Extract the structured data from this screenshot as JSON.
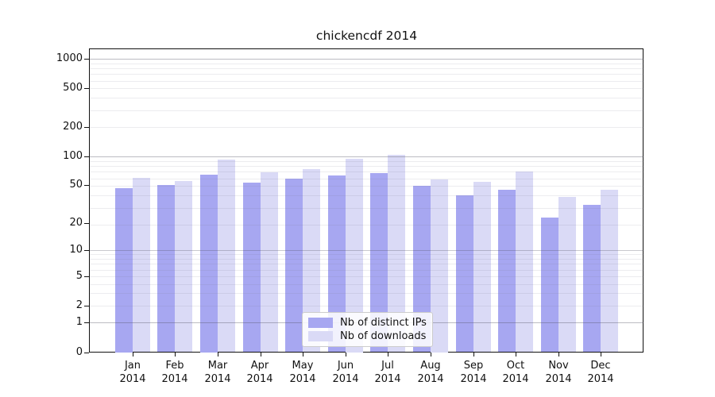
{
  "chart_data": {
    "type": "bar",
    "title": "chickencdf 2014",
    "x_categories": [
      "Jan 2014",
      "Feb 2014",
      "Mar 2014",
      "Apr 2014",
      "May 2014",
      "Jun 2014",
      "Jul 2014",
      "Aug 2014",
      "Sep 2014",
      "Oct 2014",
      "Nov 2014",
      "Dec 2014"
    ],
    "months": [
      "Jan",
      "Feb",
      "Mar",
      "Apr",
      "May",
      "Jun",
      "Jul",
      "Aug",
      "Sep",
      "Oct",
      "Nov",
      "Dec"
    ],
    "year": "2014",
    "series": [
      {
        "name": "Nb of distinct IPs",
        "key": "distinct-ips",
        "color": "#a7a7f1",
        "values": [
          47,
          50,
          65,
          53,
          59,
          63,
          67,
          49,
          39,
          45,
          23,
          31
        ]
      },
      {
        "name": "Nb of downloads",
        "key": "downloads",
        "color": "#dadaf6",
        "values": [
          60,
          55,
          92,
          68,
          73,
          95,
          103,
          58,
          54,
          70,
          38,
          45
        ]
      }
    ],
    "yscale": "log10(1+y)",
    "yticks": [
      0,
      1,
      2,
      5,
      10,
      20,
      50,
      100,
      200,
      500,
      1000
    ],
    "ylim": [
      0,
      1280
    ],
    "grid": true,
    "legend_position": "lower-center"
  },
  "colors": {
    "background": "#ffffff",
    "spine": "#111111",
    "text": "#111111",
    "grid_major": "#c9c9cf",
    "grid_minor": "#ececef",
    "legend_border": "#cccccc"
  }
}
